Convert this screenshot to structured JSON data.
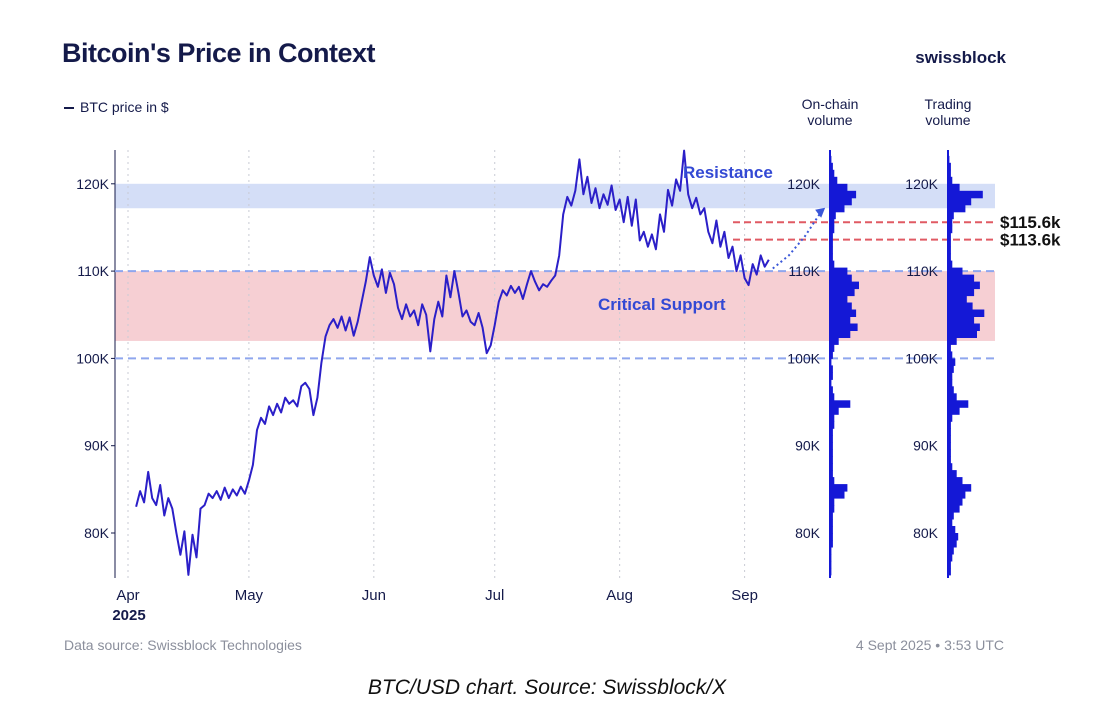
{
  "header": {
    "title": "Bitcoin's Price in Context",
    "brand": "swissblock",
    "legend_label": "BTC price in $"
  },
  "volume_panels": [
    {
      "title_line1": "On-chain",
      "title_line2": "volume"
    },
    {
      "title_line1": "Trading",
      "title_line2": "volume"
    }
  ],
  "footer": {
    "source": "Data source: Swissblock Technologies",
    "timestamp": "4 Sept 2025 • 3:53 UTC"
  },
  "caption": "BTC/USD chart. Source: Swissblock/X",
  "colors": {
    "price_line": "#2b1fc8",
    "resistance_band": "#d4def7",
    "support_band": "#f6cfd3",
    "level_dashed": "#8fa6ee",
    "target_dashed": "#e05a63",
    "volume_bar": "#1418d6",
    "text_dark": "#141a4a",
    "annotation_blue": "#3349d4"
  },
  "chart_data": {
    "type": "line",
    "title": "Bitcoin's Price in Context",
    "ylim": [
      75000,
      124500
    ],
    "xlim": [
      0,
      160
    ],
    "y_ticks": [
      {
        "value": 80000,
        "label": "80K"
      },
      {
        "value": 90000,
        "label": "90K"
      },
      {
        "value": 100000,
        "label": "100K"
      },
      {
        "value": 110000,
        "label": "110K"
      },
      {
        "value": 120000,
        "label": "120K"
      }
    ],
    "x_ticks": [
      {
        "day": 0,
        "label": "Apr",
        "sublabel": "2025"
      },
      {
        "day": 30,
        "label": "May"
      },
      {
        "day": 61,
        "label": "Jun"
      },
      {
        "day": 91,
        "label": "Jul"
      },
      {
        "day": 122,
        "label": "Aug"
      },
      {
        "day": 153,
        "label": "Sep"
      }
    ],
    "bands": [
      {
        "name": "Resistance",
        "from": 117200,
        "to": 120000
      },
      {
        "name": "Critical Support",
        "from": 102000,
        "to": 110000
      }
    ],
    "reference_lines": [
      {
        "value": 100000,
        "style": "dashed"
      },
      {
        "value": 110000,
        "style": "dashed"
      }
    ],
    "targets": [
      {
        "value": 115600,
        "label": "$115.6k"
      },
      {
        "value": 113600,
        "label": "$113.6k"
      }
    ],
    "series": [
      {
        "name": "BTC price in $",
        "points": [
          [
            2,
            83000
          ],
          [
            3,
            84800
          ],
          [
            4,
            83500
          ],
          [
            5,
            87000
          ],
          [
            6,
            84000
          ],
          [
            7,
            83200
          ],
          [
            8,
            85500
          ],
          [
            9,
            82000
          ],
          [
            10,
            84000
          ],
          [
            11,
            82800
          ],
          [
            12,
            80000
          ],
          [
            13,
            77500
          ],
          [
            14,
            80200
          ],
          [
            15,
            75200
          ],
          [
            16,
            79800
          ],
          [
            17,
            77200
          ],
          [
            18,
            82800
          ],
          [
            19,
            83200
          ],
          [
            20,
            84500
          ],
          [
            21,
            84000
          ],
          [
            22,
            84800
          ],
          [
            23,
            83800
          ],
          [
            24,
            85200
          ],
          [
            25,
            84000
          ],
          [
            26,
            85000
          ],
          [
            27,
            84300
          ],
          [
            28,
            85300
          ],
          [
            29,
            84500
          ],
          [
            30,
            86000
          ],
          [
            31,
            87800
          ],
          [
            32,
            91800
          ],
          [
            33,
            93200
          ],
          [
            34,
            92500
          ],
          [
            35,
            94500
          ],
          [
            36,
            93500
          ],
          [
            37,
            94800
          ],
          [
            38,
            93800
          ],
          [
            39,
            95500
          ],
          [
            40,
            94800
          ],
          [
            41,
            95200
          ],
          [
            42,
            94500
          ],
          [
            43,
            96800
          ],
          [
            44,
            97200
          ],
          [
            45,
            96500
          ],
          [
            46,
            93500
          ],
          [
            47,
            95500
          ],
          [
            48,
            99500
          ],
          [
            49,
            102500
          ],
          [
            50,
            103800
          ],
          [
            51,
            104500
          ],
          [
            52,
            103500
          ],
          [
            53,
            104800
          ],
          [
            54,
            103200
          ],
          [
            55,
            104700
          ],
          [
            56,
            102600
          ],
          [
            57,
            104200
          ],
          [
            58,
            106500
          ],
          [
            59,
            108800
          ],
          [
            60,
            111600
          ],
          [
            61,
            109500
          ],
          [
            62,
            108200
          ],
          [
            63,
            110200
          ],
          [
            64,
            107500
          ],
          [
            65,
            109800
          ],
          [
            66,
            108500
          ],
          [
            67,
            105800
          ],
          [
            68,
            104500
          ],
          [
            69,
            106200
          ],
          [
            70,
            104800
          ],
          [
            71,
            105500
          ],
          [
            72,
            103800
          ],
          [
            73,
            106200
          ],
          [
            74,
            105000
          ],
          [
            75,
            100800
          ],
          [
            76,
            104500
          ],
          [
            77,
            106500
          ],
          [
            78,
            104800
          ],
          [
            79,
            109500
          ],
          [
            80,
            107000
          ],
          [
            81,
            110000
          ],
          [
            82,
            107500
          ],
          [
            83,
            104800
          ],
          [
            84,
            105500
          ],
          [
            85,
            104200
          ],
          [
            86,
            103800
          ],
          [
            87,
            105200
          ],
          [
            88,
            103500
          ],
          [
            89,
            100600
          ],
          [
            90,
            101500
          ],
          [
            91,
            103800
          ],
          [
            92,
            106500
          ],
          [
            93,
            107800
          ],
          [
            94,
            107200
          ],
          [
            95,
            108300
          ],
          [
            96,
            107500
          ],
          [
            97,
            108200
          ],
          [
            98,
            106800
          ],
          [
            99,
            108500
          ],
          [
            100,
            110000
          ],
          [
            101,
            108800
          ],
          [
            102,
            107800
          ],
          [
            103,
            108500
          ],
          [
            104,
            108200
          ],
          [
            105,
            108900
          ],
          [
            106,
            109500
          ],
          [
            107,
            111800
          ],
          [
            108,
            116500
          ],
          [
            109,
            118500
          ],
          [
            110,
            117500
          ],
          [
            111,
            119200
          ],
          [
            112,
            122800
          ],
          [
            113,
            118800
          ],
          [
            114,
            120800
          ],
          [
            115,
            117800
          ],
          [
            116,
            119500
          ],
          [
            117,
            117200
          ],
          [
            118,
            118800
          ],
          [
            119,
            117600
          ],
          [
            120,
            119800
          ],
          [
            121,
            117000
          ],
          [
            122,
            118200
          ],
          [
            123,
            115600
          ],
          [
            124,
            118500
          ],
          [
            125,
            115200
          ],
          [
            126,
            118200
          ],
          [
            127,
            113500
          ],
          [
            128,
            114500
          ],
          [
            129,
            112800
          ],
          [
            130,
            114200
          ],
          [
            131,
            112500
          ],
          [
            132,
            116500
          ],
          [
            133,
            114500
          ],
          [
            134,
            119300
          ],
          [
            135,
            117500
          ],
          [
            136,
            120500
          ],
          [
            137,
            119200
          ],
          [
            138,
            123800
          ],
          [
            139,
            118800
          ],
          [
            140,
            117200
          ],
          [
            141,
            118400
          ],
          [
            142,
            116500
          ],
          [
            143,
            117200
          ],
          [
            144,
            114500
          ],
          [
            145,
            113200
          ],
          [
            146,
            115800
          ],
          [
            147,
            112800
          ],
          [
            148,
            114500
          ],
          [
            149,
            111500
          ],
          [
            150,
            112800
          ],
          [
            151,
            110000
          ],
          [
            152,
            111800
          ],
          [
            153,
            109200
          ],
          [
            154,
            108400
          ],
          [
            155,
            110800
          ],
          [
            156,
            109600
          ],
          [
            157,
            111800
          ],
          [
            158,
            110500
          ],
          [
            159,
            111300
          ]
        ]
      }
    ],
    "projection": {
      "style": "dotted",
      "points": [
        [
          160,
          110300
        ],
        [
          164,
          111800
        ],
        [
          168,
          114000
        ],
        [
          172,
          116800
        ]
      ]
    },
    "annotations": [
      {
        "text": "Resistance",
        "target_band": "Resistance"
      },
      {
        "text": "Critical Support",
        "target_band": "Critical Support"
      }
    ],
    "onchain_volume": {
      "y_ticks": [
        "120K",
        "110K",
        "100K",
        "90K",
        "80K"
      ],
      "bins": [
        [
          122800,
          1
        ],
        [
          122000,
          2
        ],
        [
          121200,
          3
        ],
        [
          120400,
          5
        ],
        [
          119600,
          12
        ],
        [
          118800,
          18
        ],
        [
          118000,
          15
        ],
        [
          117200,
          10
        ],
        [
          116400,
          4
        ],
        [
          115600,
          3
        ],
        [
          114800,
          3
        ],
        [
          114000,
          2
        ],
        [
          113200,
          2
        ],
        [
          112400,
          2
        ],
        [
          111600,
          2
        ],
        [
          110800,
          3
        ],
        [
          110000,
          12
        ],
        [
          109200,
          15
        ],
        [
          108400,
          20
        ],
        [
          107600,
          17
        ],
        [
          106800,
          12
        ],
        [
          106000,
          15
        ],
        [
          105200,
          18
        ],
        [
          104400,
          14
        ],
        [
          103600,
          19
        ],
        [
          102800,
          14
        ],
        [
          102000,
          6
        ],
        [
          101200,
          3
        ],
        [
          100400,
          2
        ],
        [
          99600,
          1
        ],
        [
          98800,
          2
        ],
        [
          98000,
          2
        ],
        [
          97200,
          1
        ],
        [
          96400,
          2
        ],
        [
          95600,
          3
        ],
        [
          94800,
          14
        ],
        [
          94000,
          6
        ],
        [
          93200,
          3
        ],
        [
          92400,
          3
        ],
        [
          91600,
          2
        ],
        [
          90800,
          2
        ],
        [
          90000,
          2
        ],
        [
          89200,
          2
        ],
        [
          88400,
          2
        ],
        [
          87600,
          2
        ],
        [
          86800,
          2
        ],
        [
          86000,
          3
        ],
        [
          85200,
          12
        ],
        [
          84400,
          10
        ],
        [
          83600,
          3
        ],
        [
          82800,
          3
        ],
        [
          82000,
          2
        ],
        [
          81200,
          2
        ],
        [
          80400,
          2
        ],
        [
          79600,
          2
        ],
        [
          78800,
          2
        ],
        [
          78000,
          1
        ],
        [
          77200,
          1
        ],
        [
          76400,
          1
        ],
        [
          75600,
          1
        ]
      ]
    },
    "trading_volume": {
      "y_ticks": [
        "120K",
        "110K",
        "100K",
        "90K",
        "80K"
      ],
      "bins": [
        [
          122800,
          1
        ],
        [
          122000,
          2
        ],
        [
          121200,
          2
        ],
        [
          120400,
          3
        ],
        [
          119600,
          8
        ],
        [
          118800,
          24
        ],
        [
          118000,
          16
        ],
        [
          117200,
          12
        ],
        [
          116400,
          4
        ],
        [
          115600,
          3
        ],
        [
          114800,
          3
        ],
        [
          114000,
          2
        ],
        [
          113200,
          2
        ],
        [
          112400,
          2
        ],
        [
          111600,
          2
        ],
        [
          110800,
          3
        ],
        [
          110000,
          10
        ],
        [
          109200,
          18
        ],
        [
          108400,
          22
        ],
        [
          107600,
          18
        ],
        [
          106800,
          13
        ],
        [
          106000,
          17
        ],
        [
          105200,
          25
        ],
        [
          104400,
          18
        ],
        [
          103600,
          22
        ],
        [
          102800,
          20
        ],
        [
          102000,
          6
        ],
        [
          101200,
          2
        ],
        [
          100400,
          3
        ],
        [
          99600,
          5
        ],
        [
          98800,
          4
        ],
        [
          98000,
          3
        ],
        [
          97200,
          3
        ],
        [
          96400,
          4
        ],
        [
          95600,
          6
        ],
        [
          94800,
          14
        ],
        [
          94000,
          8
        ],
        [
          93200,
          3
        ],
        [
          92400,
          2
        ],
        [
          91600,
          2
        ],
        [
          90800,
          2
        ],
        [
          90000,
          2
        ],
        [
          89200,
          2
        ],
        [
          88400,
          2
        ],
        [
          87600,
          3
        ],
        [
          86800,
          6
        ],
        [
          86000,
          10
        ],
        [
          85200,
          16
        ],
        [
          84400,
          12
        ],
        [
          83600,
          10
        ],
        [
          82800,
          8
        ],
        [
          82000,
          4
        ],
        [
          81200,
          3
        ],
        [
          80400,
          5
        ],
        [
          79600,
          7
        ],
        [
          78800,
          6
        ],
        [
          78000,
          4
        ],
        [
          77200,
          3
        ],
        [
          76400,
          2
        ],
        [
          75600,
          2
        ]
      ]
    }
  }
}
